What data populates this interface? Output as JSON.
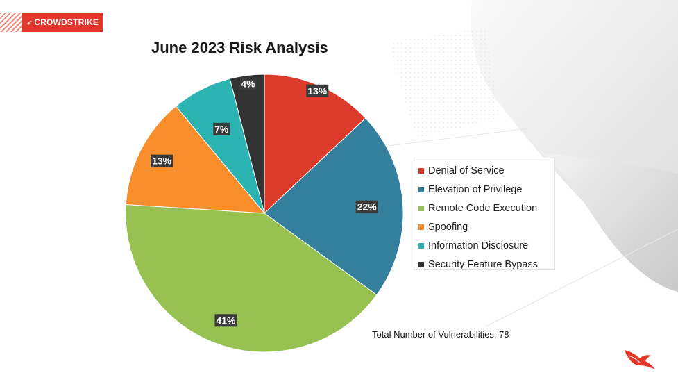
{
  "brand": {
    "name": "CROWDSTRIKE",
    "accent": "#e2372a"
  },
  "chart_data": {
    "type": "pie",
    "title": "June 2023 Risk Analysis",
    "categories": [
      "Denial of Service",
      "Elevation of Privilege",
      "Remote Code Execution",
      "Spoofing",
      "Information Disclosure",
      "Security Feature Bypass"
    ],
    "values": [
      13,
      22,
      41,
      13,
      7,
      4
    ],
    "labels": [
      "13%",
      "22%",
      "41%",
      "13%",
      "7%",
      "4%"
    ],
    "colors": [
      "#dc3a2b",
      "#347f9b",
      "#97c251",
      "#f78d2b",
      "#2bb4b1",
      "#333333"
    ],
    "legend_position": "right",
    "annotation": "Total Number of Vulnerabilities: 78"
  },
  "icons": {
    "logo": "falcon-logo-icon"
  }
}
